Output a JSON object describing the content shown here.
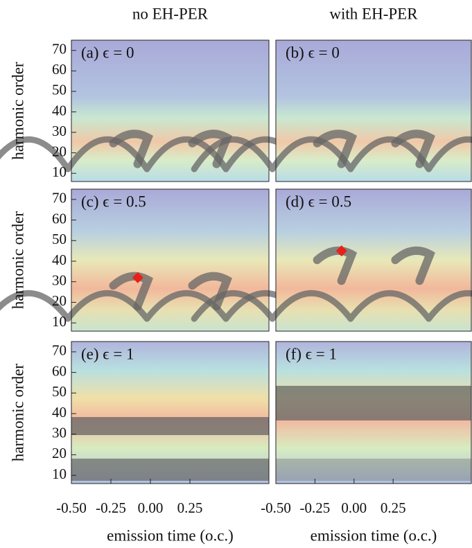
{
  "chart_data": [
    {
      "type": "heatmap",
      "title": "no EH-PER",
      "label": "(a) ϵ = 0",
      "ylabel": "harmonic order",
      "xlim": [
        -0.5,
        0.75
      ],
      "ylim": [
        6,
        75
      ],
      "yticks": [
        10,
        20,
        30,
        40,
        50,
        60,
        70
      ]
    },
    {
      "type": "heatmap",
      "title": "with EH-PER",
      "label": "(b) ϵ = 0",
      "xlim": [
        -0.5,
        0.75
      ],
      "ylim": [
        6,
        75
      ]
    },
    {
      "type": "heatmap",
      "label": "(c) ϵ = 0.5",
      "ylabel": "harmonic order",
      "xlim": [
        -0.5,
        0.75
      ],
      "ylim": [
        6,
        75
      ],
      "yticks": [
        10,
        20,
        30,
        40,
        50,
        60,
        70
      ],
      "marker": {
        "x": -0.08,
        "y": 32,
        "color": "#e8201a"
      }
    },
    {
      "type": "heatmap",
      "label": "(d) ϵ = 0.5",
      "xlim": [
        -0.5,
        0.75
      ],
      "ylim": [
        6,
        75
      ],
      "marker": {
        "x": -0.08,
        "y": 45,
        "color": "#e8201a"
      }
    },
    {
      "type": "heatmap",
      "label": "(e) ϵ = 1",
      "ylabel": "harmonic order",
      "xlabel": "emission time (o.c.)",
      "xlim": [
        -0.5,
        0.75
      ],
      "ylim": [
        6,
        75
      ],
      "yticks": [
        10,
        20,
        30,
        40,
        50,
        60,
        70
      ],
      "xticks": [
        {
          "value": -0.5,
          "label": "-0.50"
        },
        {
          "value": -0.25,
          "label": "-0.25"
        },
        {
          "value": 0,
          "label": "0.00"
        },
        {
          "value": 0.25,
          "label": "0.25"
        }
      ]
    },
    {
      "type": "heatmap",
      "label": "(f) ϵ = 1",
      "xlabel": "emission time (o.c.)",
      "xlim": [
        -0.5,
        0.75
      ],
      "ylim": [
        6,
        75
      ],
      "xticks": [
        {
          "value": -0.5,
          "label": "-0.50"
        },
        {
          "value": -0.25,
          "label": "-0.25"
        },
        {
          "value": 0,
          "label": "0.00"
        },
        {
          "value": 0.25,
          "label": "0.25"
        }
      ]
    }
  ]
}
